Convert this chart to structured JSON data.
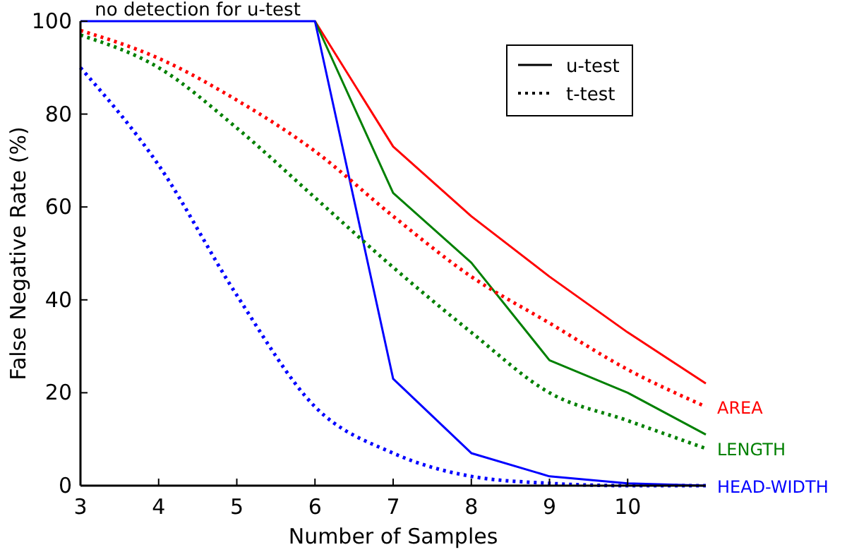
{
  "chart_data": {
    "type": "line",
    "xlabel": "Number of Samples",
    "ylabel": "False Negative Rate (%)",
    "x": [
      3,
      4,
      5,
      6,
      7,
      8,
      9,
      10,
      11
    ],
    "xlim": [
      3,
      11
    ],
    "xticks": [
      3,
      4,
      5,
      6,
      7,
      8,
      9,
      10
    ],
    "ylim": [
      0,
      100
    ],
    "yticks": [
      0,
      20,
      40,
      60,
      80,
      100
    ],
    "grid": false,
    "legend": "top right",
    "marker": "none",
    "annotations": [
      {
        "text": "no detection for u-test",
        "x": 4.5,
        "y": 100
      }
    ],
    "series": [
      {
        "name": "u-test",
        "color": "#000000",
        "line_style": "solid",
        "values": [
          null,
          null,
          null,
          null,
          null,
          null,
          null,
          null,
          null
        ]
      },
      {
        "name": "t-test",
        "color": "#000000",
        "line_style": "dotted",
        "values": [
          null,
          null,
          null,
          null,
          null,
          null,
          null,
          null,
          null
        ]
      },
      {
        "color": "#ff0000",
        "line_style": "solid",
        "values": [
          null,
          null,
          null,
          100,
          73,
          58,
          45,
          33,
          22
        ]
      },
      {
        "color": "#008000",
        "line_style": "solid",
        "values": [
          null,
          null,
          null,
          100,
          63,
          48,
          27,
          20,
          11
        ]
      },
      {
        "color": "#0000ff",
        "line_style": "solid",
        "values": [
          100,
          100,
          100,
          100,
          23,
          7,
          2,
          0.5,
          0
        ]
      },
      {
        "name": "AREA",
        "color": "#ff0000",
        "line_style": "dotted",
        "values": [
          98,
          92,
          83,
          72,
          58,
          45,
          35,
          25,
          17
        ]
      },
      {
        "name": "LENGTH",
        "color": "#008000",
        "line_style": "dotted",
        "values": [
          97,
          90,
          77,
          62,
          47,
          33,
          20,
          14,
          8
        ]
      },
      {
        "name": "HEAD-WIDTH",
        "color": "#0000ff",
        "line_style": "dotted",
        "values": [
          90,
          69,
          41,
          17,
          7,
          2,
          0.5,
          0,
          0
        ]
      }
    ]
  }
}
